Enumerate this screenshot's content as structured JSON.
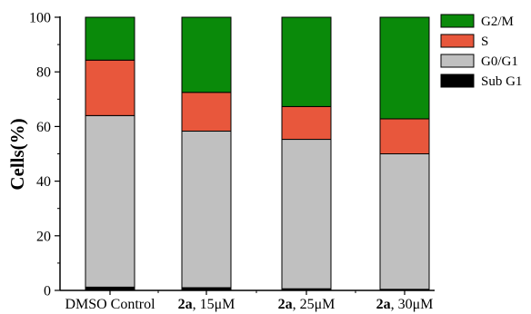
{
  "chart_data": {
    "type": "bar",
    "stacked": true,
    "title": "",
    "xlabel": "",
    "ylabel": "Cells(%)",
    "ylim": [
      0,
      100
    ],
    "yticks": [
      0,
      20,
      40,
      60,
      80,
      100
    ],
    "categories": [
      {
        "bold": "",
        "rest": "DMSO Control"
      },
      {
        "bold": "2a",
        "rest": ", 15μM"
      },
      {
        "bold": "2a",
        "rest": ", 25μM"
      },
      {
        "bold": "2a",
        "rest": ", 30μM"
      }
    ],
    "series": [
      {
        "name": "Sub G1",
        "color": "#000000",
        "values": [
          1.2,
          1.0,
          0.6,
          0.4
        ]
      },
      {
        "name": "G0/G1",
        "color": "#c0c0c0",
        "values": [
          62.8,
          57.3,
          54.7,
          49.6
        ]
      },
      {
        "name": "S",
        "color": "#e8573c",
        "values": [
          20.3,
          14.2,
          12.0,
          12.8
        ]
      },
      {
        "name": "G2/M",
        "color": "#0a8a0a",
        "values": [
          15.7,
          27.5,
          32.7,
          37.2
        ]
      }
    ],
    "legend_order": [
      "G2/M",
      "S",
      "G0/G1",
      "Sub G1"
    ],
    "legend_position": "top-right",
    "grid": false
  }
}
